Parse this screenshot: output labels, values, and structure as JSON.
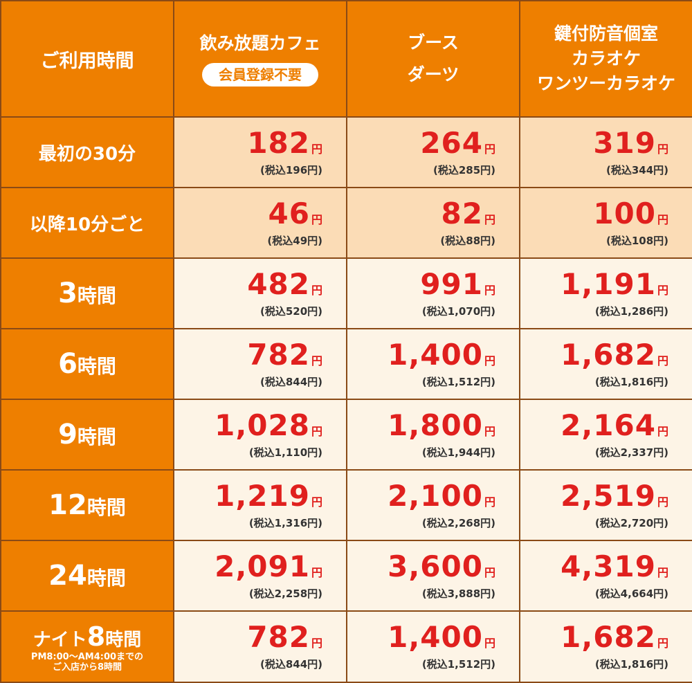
{
  "header": {
    "time_label": "ご利用時間",
    "cols": [
      {
        "lines": [
          "飲み放題カフェ"
        ],
        "badge": "会員登録不要"
      },
      {
        "lines": [
          "ブース",
          "ダーツ"
        ],
        "badge": ""
      },
      {
        "lines": [
          "鍵付防音個室",
          "カラオケ",
          "ワンツーカラオケ"
        ],
        "badge": ""
      }
    ]
  },
  "yen": "円",
  "rows": [
    {
      "label": "最初の30分",
      "prices": [
        {
          "price": "182",
          "tax": "(税込196円)"
        },
        {
          "price": "264",
          "tax": "(税込285円)"
        },
        {
          "price": "319",
          "tax": "(税込344円)"
        }
      ]
    },
    {
      "label": "以降10分ごと",
      "prices": [
        {
          "price": "46",
          "tax": "(税込49円)"
        },
        {
          "price": "82",
          "tax": "(税込88円)"
        },
        {
          "price": "100",
          "tax": "(税込108円)"
        }
      ]
    },
    {
      "label_num": "3",
      "label_unit": "時間",
      "prices": [
        {
          "price": "482",
          "tax": "(税込520円)"
        },
        {
          "price": "991",
          "tax": "(税込1,070円)"
        },
        {
          "price": "1,191",
          "tax": "(税込1,286円)"
        }
      ]
    },
    {
      "label_num": "6",
      "label_unit": "時間",
      "prices": [
        {
          "price": "782",
          "tax": "(税込844円)"
        },
        {
          "price": "1,400",
          "tax": "(税込1,512円)"
        },
        {
          "price": "1,682",
          "tax": "(税込1,816円)"
        }
      ]
    },
    {
      "label_num": "9",
      "label_unit": "時間",
      "prices": [
        {
          "price": "1,028",
          "tax": "(税込1,110円)"
        },
        {
          "price": "1,800",
          "tax": "(税込1,944円)"
        },
        {
          "price": "2,164",
          "tax": "(税込2,337円)"
        }
      ]
    },
    {
      "label_num": "12",
      "label_unit": "時間",
      "prices": [
        {
          "price": "1,219",
          "tax": "(税込1,316円)"
        },
        {
          "price": "2,100",
          "tax": "(税込2,268円)"
        },
        {
          "price": "2,519",
          "tax": "(税込2,720円)"
        }
      ]
    },
    {
      "label_num": "24",
      "label_unit": "時間",
      "prices": [
        {
          "price": "2,091",
          "tax": "(税込2,258円)"
        },
        {
          "price": "3,600",
          "tax": "(税込3,888円)"
        },
        {
          "price": "4,319",
          "tax": "(税込4,664円)"
        }
      ]
    },
    {
      "label_pre": "ナイト",
      "label_num": "8",
      "label_unit": "時間",
      "note1": "PM8:00～AM4:00までの",
      "note2": "ご入店から8時間",
      "prices": [
        {
          "price": "782",
          "tax": "(税込844円)"
        },
        {
          "price": "1,400",
          "tax": "(税込1,512円)"
        },
        {
          "price": "1,682",
          "tax": "(税込1,816円)"
        }
      ]
    }
  ]
}
